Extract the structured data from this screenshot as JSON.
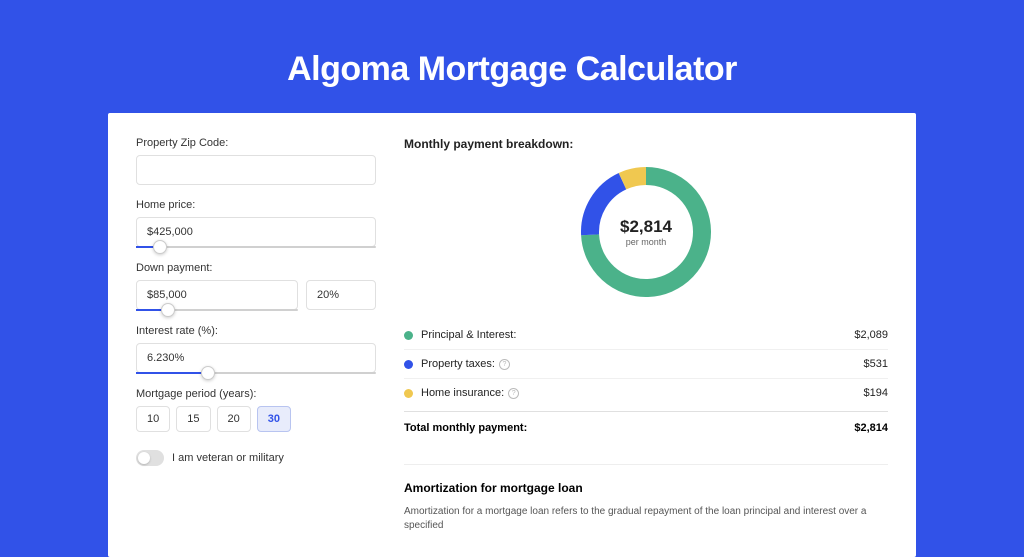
{
  "page": {
    "title": "Algoma Mortgage Calculator",
    "bg_color": "#3152e8"
  },
  "form": {
    "zip": {
      "label": "Property Zip Code:",
      "value": ""
    },
    "home_price": {
      "label": "Home price:",
      "value": "$425,000",
      "slider_pct": 10
    },
    "down_payment": {
      "label": "Down payment:",
      "amount": "$85,000",
      "percent": "20%",
      "slider_pct": 20
    },
    "interest": {
      "label": "Interest rate (%):",
      "value": "6.230%",
      "slider_pct": 30
    },
    "period": {
      "label": "Mortgage period (years):",
      "options": [
        "10",
        "15",
        "20",
        "30"
      ],
      "selected": "30"
    },
    "veteran": {
      "label": "I am veteran or military",
      "checked": false
    }
  },
  "breakdown": {
    "title": "Monthly payment breakdown:",
    "donut": {
      "amount": "$2,814",
      "sub": "per month",
      "slices": [
        {
          "color": "#4bb28a",
          "pct": 74.2
        },
        {
          "color": "#3152e8",
          "pct": 18.9
        },
        {
          "color": "#f0c850",
          "pct": 6.9
        }
      ],
      "stroke_width": 18
    },
    "items": [
      {
        "dot": "#4bb28a",
        "label": "Principal & Interest:",
        "value": "$2,089",
        "info": false
      },
      {
        "dot": "#3152e8",
        "label": "Property taxes:",
        "value": "$531",
        "info": true
      },
      {
        "dot": "#f0c850",
        "label": "Home insurance:",
        "value": "$194",
        "info": true
      }
    ],
    "total": {
      "label": "Total monthly payment:",
      "value": "$2,814"
    }
  },
  "amort": {
    "title": "Amortization for mortgage loan",
    "text": "Amortization for a mortgage loan refers to the gradual repayment of the loan principal and interest over a specified"
  }
}
